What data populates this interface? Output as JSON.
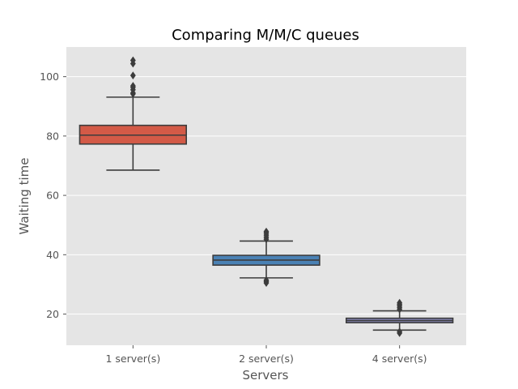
{
  "chart_data": {
    "type": "box",
    "title": "Comparing M/M/C queues",
    "xlabel": "Servers",
    "ylabel": "Waiting time",
    "categories": [
      "1 server(s)",
      "2 server(s)",
      "4 server(s)"
    ],
    "ylim": [
      9.5,
      110
    ],
    "yticks": [
      20,
      40,
      60,
      80,
      100
    ],
    "grid": true,
    "background": "#e5e5e5",
    "gridColor": "#ffffff",
    "lineColor": "#3c3c3c",
    "boxes": [
      {
        "category": "1 server(s)",
        "color": "#d35a47",
        "whislo": 68.5,
        "q1": 77.3,
        "median": 80.3,
        "q3": 83.6,
        "whishi": 93.1,
        "fliers": [
          94.2,
          94.5,
          95.6,
          96.4,
          96.9,
          100.4,
          104.4,
          105.5
        ]
      },
      {
        "category": "2 server(s)",
        "color": "#4a81b4",
        "whislo": 32.2,
        "q1": 36.5,
        "median": 38.2,
        "q3": 39.8,
        "whishi": 44.6,
        "fliers": [
          30.5,
          31.0,
          31.4,
          45.2,
          45.9,
          46.6,
          47.3,
          47.8
        ]
      },
      {
        "category": "4 server(s)",
        "color": "#8b8bbd",
        "whislo": 14.6,
        "q1": 17.1,
        "median": 17.8,
        "q3": 18.6,
        "whishi": 21.1,
        "fliers": [
          13.6,
          14.1,
          21.6,
          22.2,
          22.8,
          23.3,
          23.8
        ]
      }
    ]
  }
}
